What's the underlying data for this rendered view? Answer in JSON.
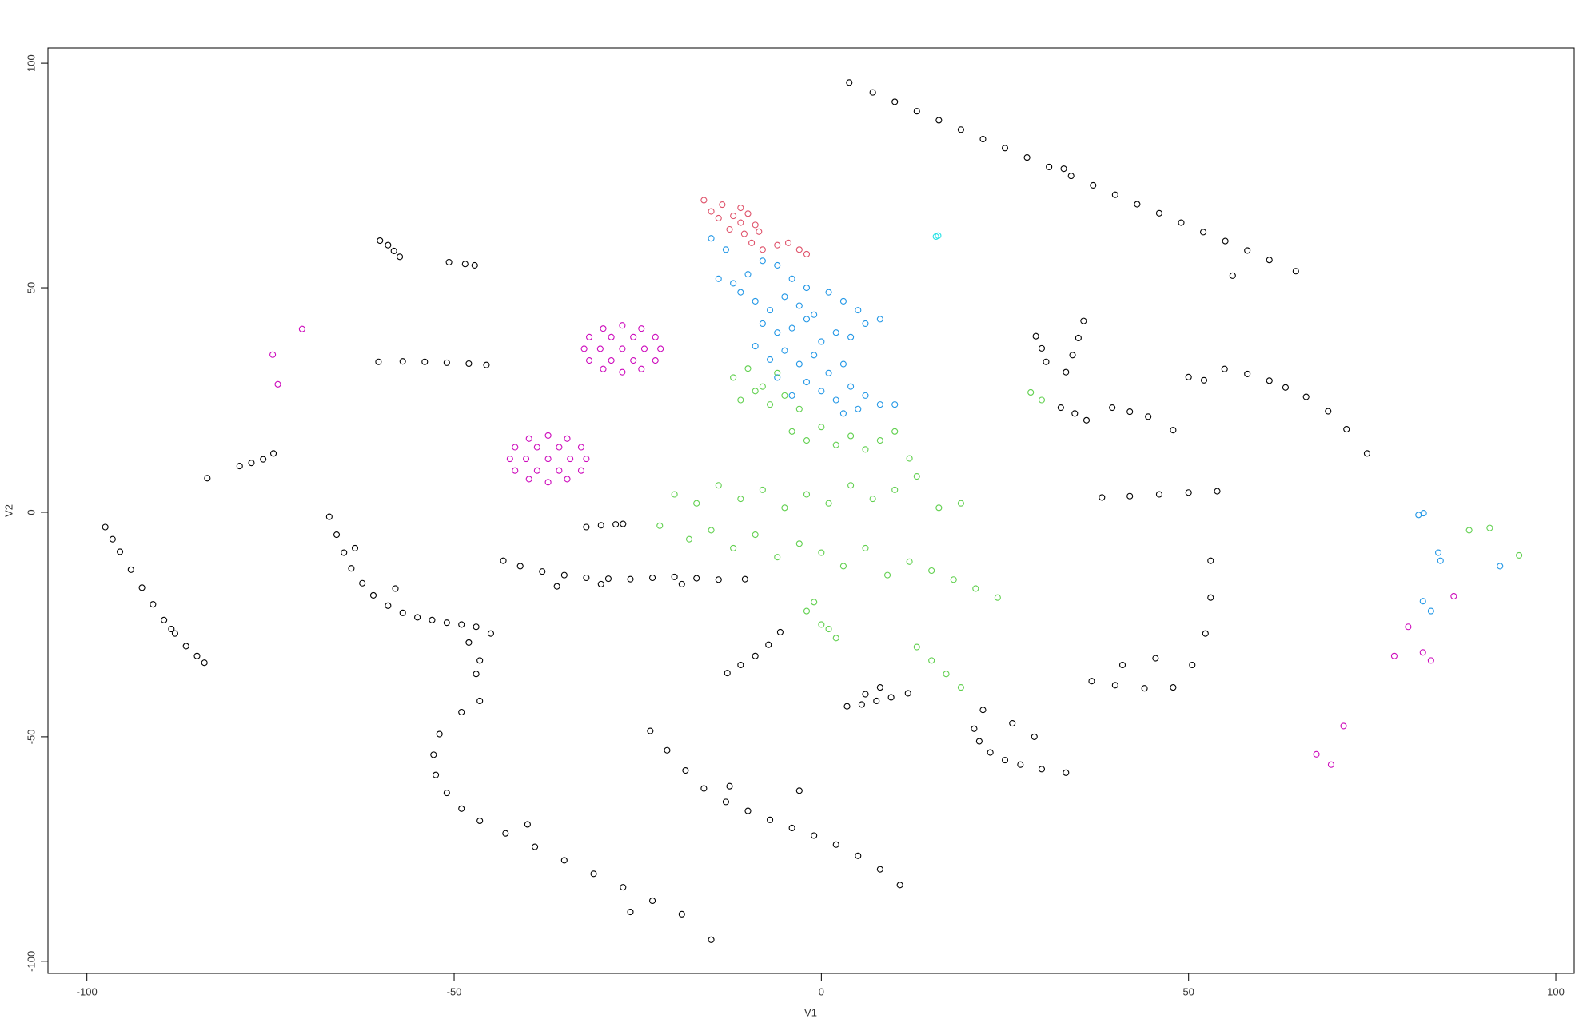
{
  "chart_data": {
    "type": "scatter",
    "x_label": "V1",
    "y_label": "V2",
    "xlim": [
      -105.3,
      102.5
    ],
    "ylim": [
      -102.7,
      103.4
    ],
    "xticks": [
      -100,
      -50,
      0,
      50,
      100
    ],
    "yticks": [
      -100,
      -50,
      0,
      50,
      100
    ],
    "series": [
      {
        "color": "#000000",
        "x": [
          3.8,
          7,
          10,
          13,
          16,
          19,
          22,
          25,
          28,
          31,
          34,
          37,
          40,
          43,
          46,
          49,
          52,
          55,
          58,
          61,
          64.6,
          33,
          56,
          -97.5,
          -96.5,
          -95.5,
          -94,
          -92.5,
          -91,
          -89.5,
          -88,
          -86.5,
          -85,
          -84,
          -88.5,
          -67,
          -66,
          -65,
          -64,
          -62.5,
          -61,
          -59,
          -57,
          -55,
          -53,
          -51,
          -49,
          -47,
          -45,
          -48,
          -46.5,
          -47,
          -63.5,
          -58,
          -46.5,
          -49,
          -52,
          -52.8,
          -52.5,
          -51,
          -49,
          -46.5,
          -43,
          -39,
          -35,
          -31,
          -27,
          -23,
          -19,
          -15,
          -40,
          -26,
          -23.3,
          -21,
          -18.5,
          -16,
          -13,
          -10,
          -7,
          -4,
          -1,
          2,
          5,
          8,
          10.7,
          -3,
          -12.5,
          -43.3,
          -41,
          -38,
          -35,
          -32,
          -29,
          -26,
          -23,
          -20,
          -17,
          -14,
          -10.4,
          -36,
          -30,
          -19,
          -32,
          -30,
          -28,
          -27,
          -12.8,
          -11,
          -9,
          -7.2,
          -5.6,
          -60.1,
          -59,
          -58.2,
          -57.4,
          -60.3,
          -57,
          -54,
          -51,
          -48,
          -45.6,
          -79.2,
          -77.6,
          -76,
          -74.6,
          -83.6,
          -50.7,
          -48.5,
          -47.2,
          3.5,
          5.5,
          7.5,
          9.5,
          11.8,
          8,
          6,
          20.8,
          21.5,
          23,
          25,
          27.1,
          30,
          33.3,
          22,
          26,
          29,
          36.8,
          40,
          44,
          47.9,
          50.5,
          52.3,
          53,
          53,
          41,
          45.5,
          38.2,
          42,
          46,
          50,
          53.9,
          54.9,
          58,
          61,
          63.2,
          66,
          69,
          71.5,
          74.3,
          39.6,
          42,
          44.5,
          47.9,
          32.6,
          34.5,
          36.1,
          33.3,
          34.2,
          35,
          35.7,
          29.2,
          30,
          30.6,
          50,
          52.1
        ],
        "values": [
          95.7,
          93.5,
          91.4,
          89.3,
          87.3,
          85.2,
          83.1,
          81.1,
          79,
          76.9,
          74.9,
          72.8,
          70.7,
          68.6,
          66.6,
          64.5,
          62.4,
          60.4,
          58.3,
          56.2,
          53.7,
          76.5,
          52.7,
          -3.3,
          -6,
          -8.8,
          -12.8,
          -16.8,
          -20.5,
          -24,
          -27,
          -29.8,
          -32,
          -33.5,
          -26,
          -1,
          -5,
          -9,
          -12.5,
          -15.8,
          -18.5,
          -20.8,
          -22.4,
          -23.4,
          -24,
          -24.6,
          -25,
          -25.5,
          -27,
          -29,
          -33,
          -36,
          -8,
          -17,
          -42,
          -44.5,
          -49.4,
          -54,
          -58.5,
          -62.5,
          -66,
          -68.7,
          -71.5,
          -74.5,
          -77.5,
          -80.5,
          -83.5,
          -86.5,
          -89.5,
          -95.2,
          -69.5,
          -89,
          -48.7,
          -53,
          -57.5,
          -61.5,
          -64.5,
          -66.5,
          -68.5,
          -70.3,
          -72,
          -74,
          -76.5,
          -79.5,
          -83,
          -62,
          -61,
          -10.8,
          -12,
          -13.2,
          -14,
          -14.6,
          -14.8,
          -14.9,
          -14.6,
          -14.4,
          -14.7,
          -15,
          -14.9,
          -16.5,
          -16,
          -16,
          -3.3,
          -2.9,
          -2.7,
          -2.6,
          -35.8,
          -34,
          -32,
          -29.5,
          -26.7,
          60.5,
          59.5,
          58.2,
          56.9,
          33.5,
          33.6,
          33.5,
          33.3,
          33.1,
          32.8,
          10.3,
          11,
          11.8,
          13.1,
          7.6,
          55.7,
          55.3,
          55,
          -43.2,
          -42.8,
          -42,
          -41.2,
          -40.3,
          -39,
          -40.5,
          -48.2,
          -51,
          -53.5,
          -55.2,
          -56.2,
          -57.2,
          -58,
          -44,
          -47,
          -50,
          -37.6,
          -38.5,
          -39.2,
          -39,
          -34,
          -27,
          -19,
          -10.8,
          -34,
          -32.5,
          3.3,
          3.6,
          4,
          4.4,
          4.7,
          31.9,
          30.8,
          29.3,
          27.8,
          25.7,
          22.5,
          18.5,
          13.1,
          23.3,
          22.4,
          21.3,
          18.3,
          23.3,
          22,
          20.5,
          31.2,
          35,
          38.8,
          42.6,
          39.2,
          36.5,
          33.5,
          30.1,
          29.4
        ]
      },
      {
        "color": "#DF536B",
        "x": [
          -16,
          -15,
          -13.5,
          -12,
          -11,
          -10,
          -9,
          -8.5,
          -12.5,
          -10.5,
          -9.5,
          -8,
          -6,
          -4.5,
          -3,
          -2,
          -11,
          -14
        ],
        "values": [
          69.5,
          67,
          68.5,
          66,
          64.5,
          66.5,
          64,
          62.5,
          63,
          62,
          60,
          58.5,
          59.5,
          60,
          58.5,
          57.5,
          67.8,
          65.5
        ]
      },
      {
        "color": "#2297E6",
        "x": [
          -15,
          -13,
          -14,
          -12,
          -10,
          -8,
          -6,
          -4,
          -2,
          -11,
          -9,
          -7,
          -5,
          -3,
          -1,
          1,
          3,
          5,
          -8,
          -6,
          -4,
          -2,
          0,
          2,
          4,
          6,
          8,
          -9,
          -7,
          -5,
          -3,
          -1,
          1,
          3,
          -2,
          0,
          2,
          4,
          6,
          8,
          10,
          3,
          5,
          -6,
          -4,
          81.3,
          82,
          84.3,
          84,
          81.9,
          83,
          92.4
        ],
        "values": [
          61,
          58.5,
          52,
          51,
          53,
          56,
          55,
          52,
          50,
          49,
          47,
          45,
          48,
          46,
          44,
          49,
          47,
          45,
          42,
          40,
          41,
          43,
          38,
          40,
          39,
          42,
          43,
          37,
          34,
          36,
          33,
          35,
          31,
          33,
          29,
          27,
          25,
          28,
          26,
          24,
          24,
          22,
          23,
          30,
          26,
          -0.6,
          -0.2,
          -10.8,
          -9,
          -19.8,
          -22,
          -12
        ]
      },
      {
        "color": "#61D04F",
        "x": [
          -12,
          -10,
          -8,
          -6,
          -11,
          -9,
          -7,
          -5,
          -3,
          -4,
          -2,
          0,
          2,
          4,
          6,
          8,
          10,
          12,
          -20,
          -17,
          -14,
          -11,
          -8,
          -5,
          -2,
          1,
          4,
          7,
          10,
          13,
          16,
          19,
          -22,
          -18,
          -15,
          -12,
          -9,
          -6,
          -3,
          0,
          3,
          6,
          9,
          12,
          15,
          18,
          21,
          24,
          -2,
          0,
          2,
          -1,
          1,
          13,
          15,
          17,
          19,
          28.5,
          30,
          88.2,
          91,
          95
        ],
        "values": [
          30,
          32,
          28,
          31,
          25,
          27,
          24,
          26,
          23,
          18,
          16,
          19,
          15,
          17,
          14,
          16,
          18,
          12,
          4,
          2,
          6,
          3,
          5,
          1,
          4,
          2,
          6,
          3,
          5,
          8,
          1,
          2,
          -3,
          -6,
          -4,
          -8,
          -5,
          -10,
          -7,
          -9,
          -12,
          -8,
          -14,
          -11,
          -13,
          -15,
          -17,
          -19,
          -22,
          -25,
          -28,
          -20,
          -26,
          -30,
          -33,
          -36,
          -39,
          26.7,
          25,
          -4,
          -3.5,
          -9.6
        ]
      },
      {
        "color": "#CD0BBC",
        "x": [
          -21.9,
          -22.6,
          -24.5,
          -27.1,
          -29.7,
          -31.6,
          -32.3,
          -31.6,
          -29.7,
          -27.1,
          -24.5,
          -22.6,
          -24.1,
          -25.6,
          -28.6,
          -30.1,
          -28.6,
          -25.6,
          -27.1,
          -32,
          -32.7,
          -34.6,
          -37.2,
          -39.8,
          -41.7,
          -42.4,
          -41.7,
          -39.8,
          -37.2,
          -34.6,
          -32.7,
          -34.2,
          -35.7,
          -38.7,
          -40.2,
          -38.7,
          -35.7,
          -37.2,
          -74.7,
          -74,
          -70.7,
          79.9,
          81.9,
          86.1,
          71.1,
          67.4,
          69.4,
          78,
          83
        ],
        "values": [
          36.4,
          39,
          40.9,
          41.6,
          40.9,
          39,
          36.4,
          33.8,
          31.9,
          31.2,
          31.9,
          33.8,
          36.4,
          39,
          39,
          36.4,
          33.8,
          33.8,
          36.4,
          11.9,
          14.5,
          16.4,
          17.1,
          16.4,
          14.5,
          11.9,
          9.3,
          7.4,
          6.7,
          7.4,
          9.3,
          11.9,
          14.5,
          14.5,
          11.9,
          9.3,
          9.3,
          11.9,
          35.1,
          28.5,
          40.8,
          -25.5,
          -31.2,
          -18.7,
          -47.6,
          -53.9,
          -56.2,
          -32,
          -33
        ]
      },
      {
        "color": "#28E2E5",
        "x": [
          15.6,
          15.9
        ],
        "values": [
          61.4,
          61.6
        ]
      }
    ]
  }
}
